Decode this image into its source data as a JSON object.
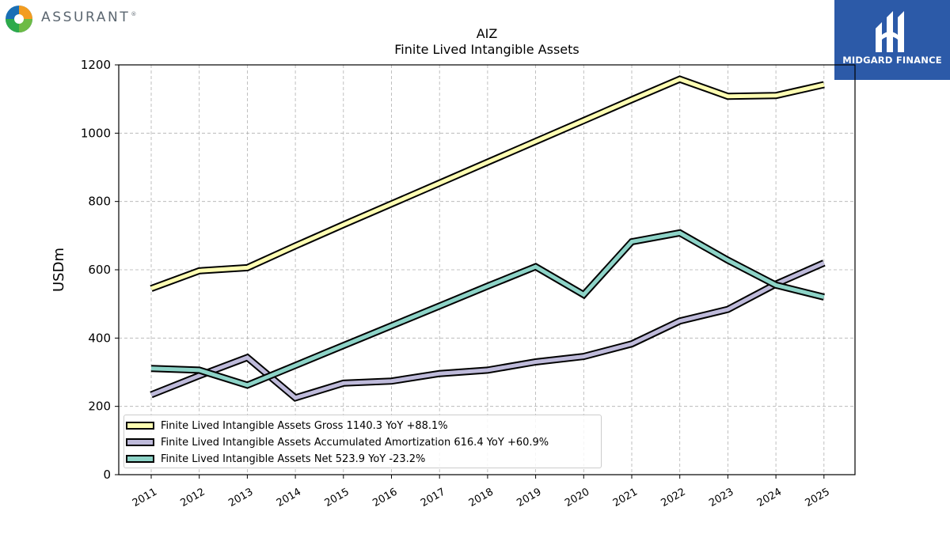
{
  "header": {
    "brand": "ASSURANT",
    "brand_mark": "®",
    "watermark": "MIDGARD FINANCE"
  },
  "chart_data": {
    "type": "line",
    "title": "AIZ",
    "subtitle": "Finite Lived Intangible Assets",
    "ylabel": "USDm",
    "xlabel": "",
    "ylim": [
      0,
      1200
    ],
    "yticks": [
      0,
      200,
      400,
      600,
      800,
      1000,
      1200
    ],
    "grid": true,
    "legend_position": "lower-left",
    "categories": [
      "2011",
      "2012",
      "2013",
      "2014",
      "2015",
      "2016",
      "2017",
      "2018",
      "2019",
      "2020",
      "2021",
      "2022",
      "2023",
      "2024",
      "2025"
    ],
    "series": [
      {
        "name": "Finite Lived Intangible Assets Gross",
        "legend_label": "Finite Lived Intangible Assets Gross  1140.3 YoY +88.1%",
        "color": "#ffffb3",
        "values": [
          545,
          597,
          606,
          670,
          732,
          793,
          854,
          915,
          976,
          1037,
          1098,
          1158,
          1108,
          1110,
          1142
        ]
      },
      {
        "name": "Finite Lived Intangible Assets Accumulated Amortization",
        "legend_label": "Finite Lived Intangible Assets Accumulated Amortization  616.4 YoY +60.9%",
        "color": "#bebada",
        "values": [
          234,
          290,
          343,
          225,
          268,
          274,
          296,
          306,
          330,
          346,
          383,
          450,
          484,
          558,
          620
        ]
      },
      {
        "name": "Finite Lived Intangible Assets Net",
        "legend_label": "Finite Lived Intangible Assets Net  523.9 YoY -23.2%",
        "color": "#8dd3c7",
        "values": [
          311,
          306,
          262,
          320,
          378,
          436,
          494,
          552,
          609,
          527,
          682,
          708,
          628,
          555,
          520
        ]
      }
    ]
  }
}
